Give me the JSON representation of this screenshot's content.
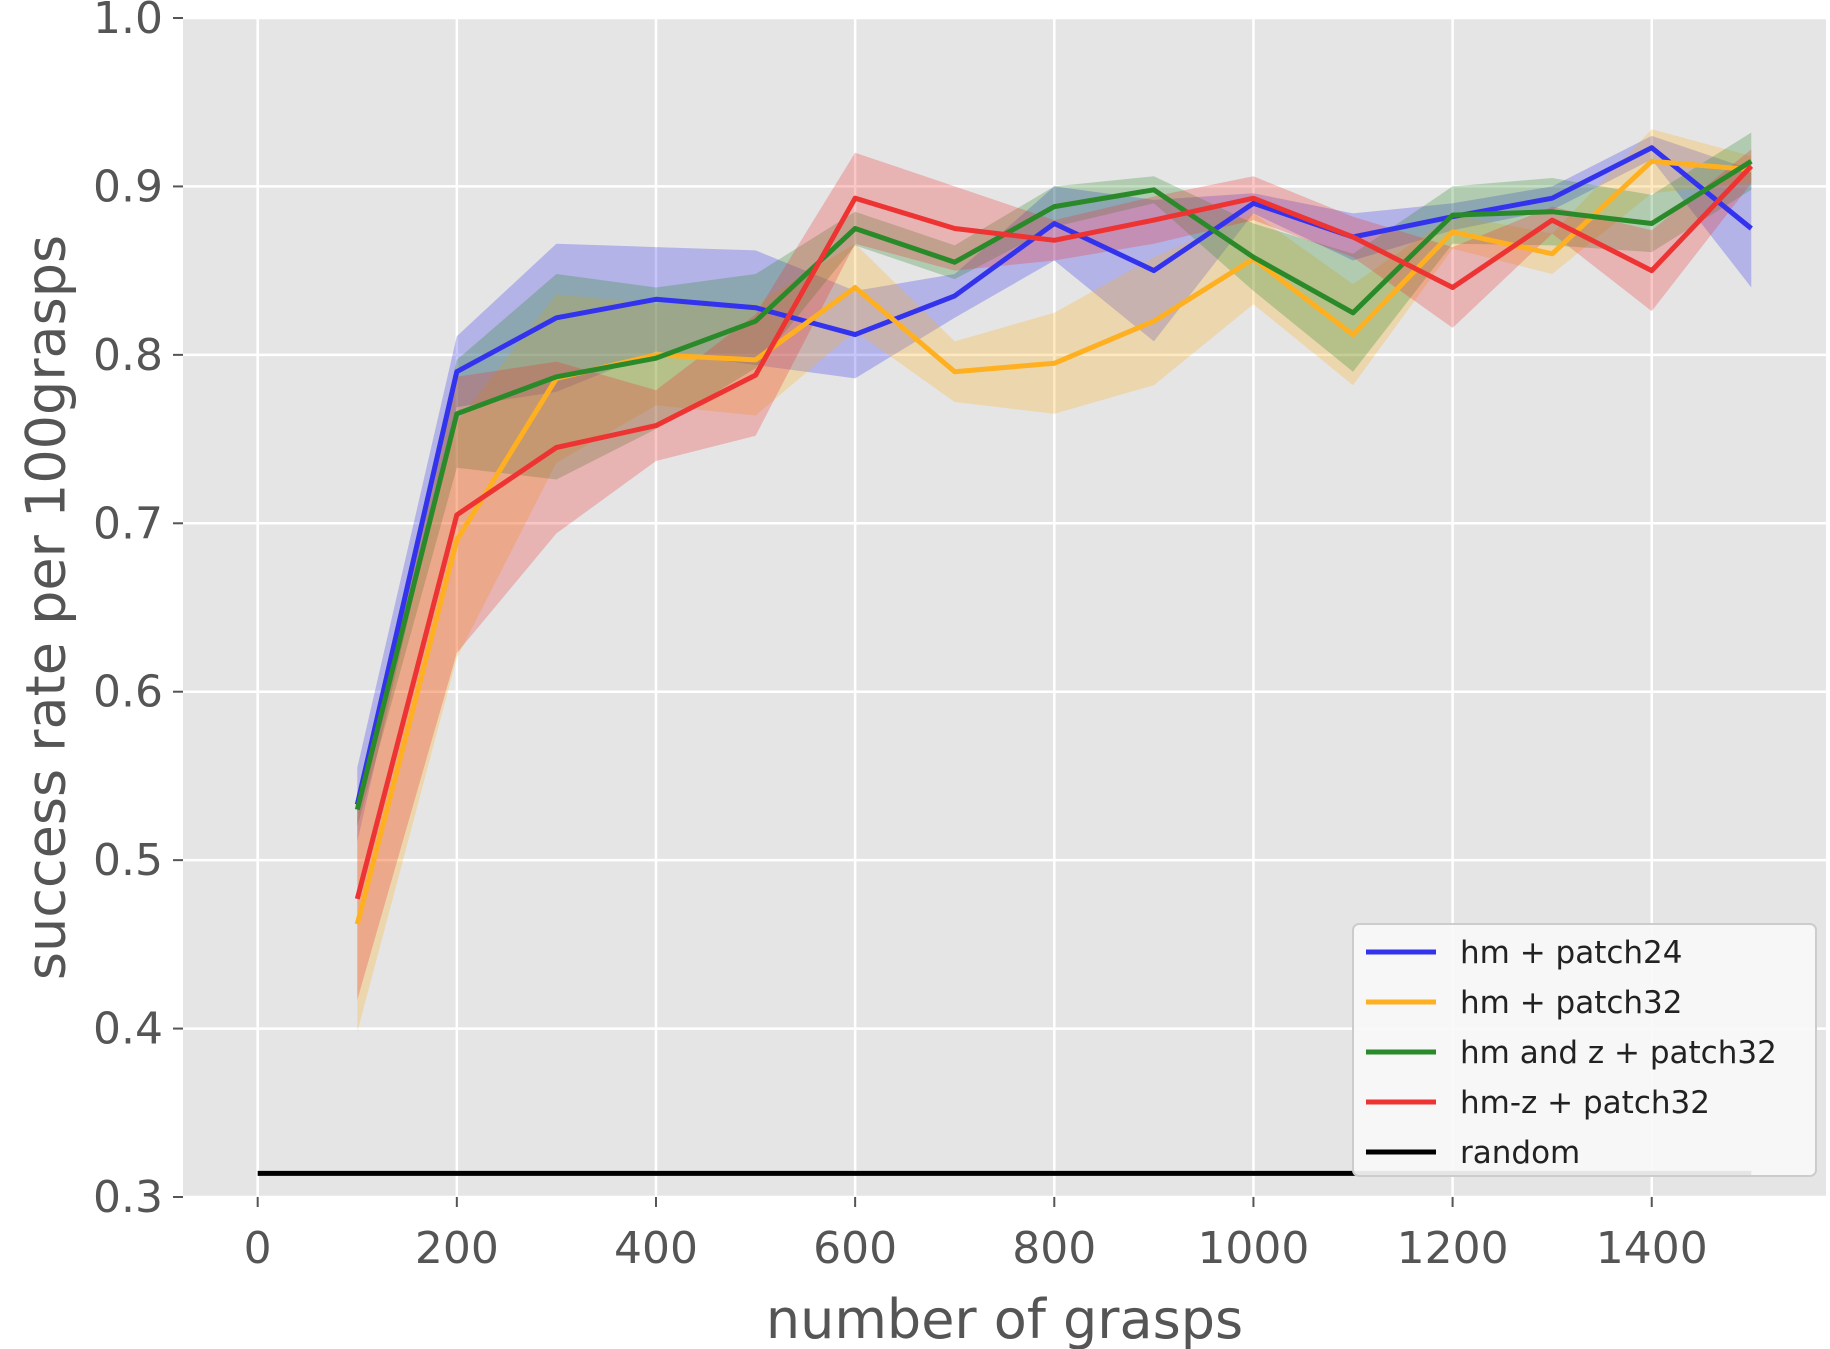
{
  "chart_data": {
    "type": "line",
    "title": "",
    "xlabel": "number of grasps",
    "ylabel": "success rate per 100grasps",
    "xlim": [
      -75,
      1575
    ],
    "ylim": [
      0.3,
      1.0
    ],
    "xticks": [
      0,
      200,
      400,
      600,
      800,
      1000,
      1200,
      1400
    ],
    "xtick_labels": [
      "0",
      "200",
      "400",
      "600",
      "800",
      "1000",
      "1200",
      "1400"
    ],
    "yticks": [
      0.3,
      0.4,
      0.5,
      0.6,
      0.7,
      0.8,
      0.9,
      1.0
    ],
    "ytick_labels": [
      "0.3",
      "0.4",
      "0.5",
      "0.6",
      "0.7",
      "0.8",
      "0.9",
      "1.0"
    ],
    "grid": true,
    "background": "#e5e5e5",
    "legend_position": "bottom-right",
    "x": [
      100,
      200,
      300,
      400,
      500,
      600,
      700,
      800,
      900,
      1000,
      1100,
      1200,
      1300,
      1400,
      1500
    ],
    "series": [
      {
        "name": "hm + patch24",
        "color": "#3333ee",
        "values": [
          0.533,
          0.79,
          0.822,
          0.833,
          0.828,
          0.812,
          0.835,
          0.878,
          0.85,
          0.89,
          0.87,
          0.882,
          0.893,
          0.923,
          0.875
        ],
        "upper": [
          0.555,
          0.811,
          0.866,
          0.864,
          0.862,
          0.838,
          0.848,
          0.9,
          0.892,
          0.896,
          0.884,
          0.89,
          0.9,
          0.93,
          0.91
        ],
        "lower": [
          0.511,
          0.769,
          0.778,
          0.802,
          0.794,
          0.786,
          0.822,
          0.856,
          0.808,
          0.884,
          0.856,
          0.874,
          0.886,
          0.916,
          0.84
        ]
      },
      {
        "name": "hm + patch32",
        "color": "#ffb020",
        "values": [
          0.462,
          0.69,
          0.786,
          0.8,
          0.797,
          0.84,
          0.79,
          0.795,
          0.82,
          0.857,
          0.812,
          0.873,
          0.86,
          0.915,
          0.91
        ],
        "upper": [
          0.526,
          0.76,
          0.836,
          0.83,
          0.83,
          0.866,
          0.808,
          0.825,
          0.858,
          0.884,
          0.842,
          0.883,
          0.872,
          0.934,
          0.918
        ],
        "lower": [
          0.398,
          0.62,
          0.736,
          0.77,
          0.764,
          0.814,
          0.772,
          0.765,
          0.782,
          0.83,
          0.782,
          0.863,
          0.848,
          0.896,
          0.902
        ]
      },
      {
        "name": "hm and z + patch32",
        "color": "#2a8a2a",
        "values": [
          0.53,
          0.765,
          0.787,
          0.798,
          0.82,
          0.875,
          0.855,
          0.888,
          0.898,
          0.858,
          0.825,
          0.883,
          0.885,
          0.878,
          0.915
        ],
        "upper": [
          0.54,
          0.797,
          0.848,
          0.84,
          0.848,
          0.885,
          0.865,
          0.9,
          0.906,
          0.878,
          0.86,
          0.9,
          0.905,
          0.895,
          0.932
        ],
        "lower": [
          0.52,
          0.733,
          0.726,
          0.756,
          0.792,
          0.865,
          0.845,
          0.876,
          0.89,
          0.838,
          0.79,
          0.866,
          0.865,
          0.861,
          0.898
        ]
      },
      {
        "name": "hm-z + patch32",
        "color": "#ee3333",
        "values": [
          0.477,
          0.705,
          0.745,
          0.758,
          0.788,
          0.893,
          0.875,
          0.868,
          0.88,
          0.893,
          0.87,
          0.84,
          0.88,
          0.85,
          0.912
        ],
        "upper": [
          0.537,
          0.787,
          0.796,
          0.779,
          0.824,
          0.92,
          0.9,
          0.88,
          0.894,
          0.906,
          0.882,
          0.864,
          0.888,
          0.874,
          0.922
        ],
        "lower": [
          0.417,
          0.623,
          0.694,
          0.737,
          0.752,
          0.866,
          0.85,
          0.856,
          0.866,
          0.88,
          0.858,
          0.816,
          0.872,
          0.826,
          0.902
        ]
      },
      {
        "name": "random",
        "color": "#000000",
        "x": [
          0,
          1500
        ],
        "values": [
          0.314,
          0.314
        ]
      }
    ]
  }
}
